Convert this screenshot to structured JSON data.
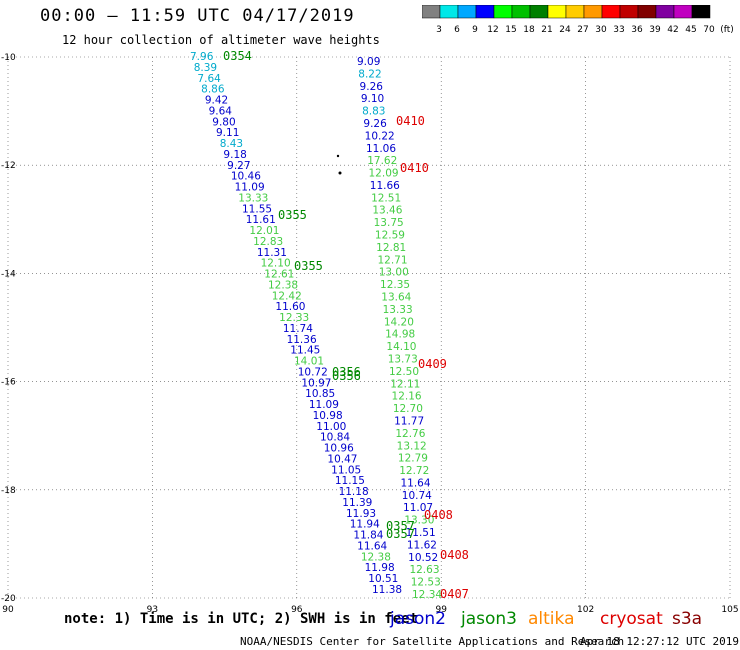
{
  "header": {
    "title": "00:00 — 11:59 UTC 04/17/2019",
    "subtitle": "12 hour collection of altimeter wave heights"
  },
  "colorbar": {
    "labels": [
      "3",
      "6",
      "9",
      "12",
      "15",
      "18",
      "21",
      "24",
      "27",
      "30",
      "33",
      "36",
      "39",
      "42",
      "45",
      "70",
      "(ft)"
    ],
    "colors": [
      "#808080",
      "#00e8e8",
      "#00a8ff",
      "#0000ff",
      "#00ff00",
      "#00c000",
      "#008000",
      "#ffff00",
      "#ffcc00",
      "#ff9900",
      "#ff0000",
      "#c00000",
      "#800000",
      "#8000a0",
      "#c000c0",
      "#000000"
    ]
  },
  "footer": {
    "note": "note: 1) Time is in UTC; 2) SWH is in feet",
    "satellites": [
      {
        "name": "jason2",
        "color": "#0000cc"
      },
      {
        "name": "jason3",
        "color": "#008800"
      },
      {
        "name": "altika",
        "color": "#ff8800"
      },
      {
        "name": "cryosat",
        "color": "#dd0000"
      },
      {
        "name": "s3a",
        "color": "#880000"
      }
    ],
    "credit": "NOAA/NESDIS Center for Satellite Applications and Research",
    "timestamp": "Apr 18 12:27:12 UTC 2019"
  },
  "chart_data": {
    "type": "scatter",
    "x_ticks": [
      "90",
      "93",
      "96",
      "99",
      "102",
      "105"
    ],
    "y_ticks": [
      "-10",
      "-12",
      "-14",
      "-16",
      "-18",
      "-20"
    ],
    "xlim": [
      90,
      105
    ],
    "ylim": [
      -20,
      -10
    ],
    "grid": true,
    "track_west": [
      {
        "v": "7.96",
        "c": "#00aacc"
      },
      {
        "v": "8.39",
        "c": "#00aacc"
      },
      {
        "v": "7.64",
        "c": "#00aacc"
      },
      {
        "v": "8.86",
        "c": "#00aacc"
      },
      {
        "v": "9.42",
        "c": "#0000cc"
      },
      {
        "v": "9.64",
        "c": "#0000cc"
      },
      {
        "v": "9.80",
        "c": "#0000cc"
      },
      {
        "v": "9.11",
        "c": "#0000cc"
      },
      {
        "v": "8.43",
        "c": "#00aacc"
      },
      {
        "v": "9.18",
        "c": "#0000cc"
      },
      {
        "v": "9.27",
        "c": "#0000cc"
      },
      {
        "v": "10.46",
        "c": "#0000cc"
      },
      {
        "v": "11.09",
        "c": "#0000cc"
      },
      {
        "v": "13.33",
        "c": "#44cc44"
      },
      {
        "v": "11.55",
        "c": "#0000cc"
      },
      {
        "v": "11.61",
        "c": "#0000cc"
      },
      {
        "v": "12.01",
        "c": "#44cc44"
      },
      {
        "v": "12.83",
        "c": "#44cc44"
      },
      {
        "v": "11.31",
        "c": "#0000cc"
      },
      {
        "v": "12.10",
        "c": "#44cc44"
      },
      {
        "v": "12.61",
        "c": "#44cc44"
      },
      {
        "v": "12.38",
        "c": "#44cc44"
      },
      {
        "v": "12.42",
        "c": "#44cc44"
      },
      {
        "v": "11.60",
        "c": "#0000cc"
      },
      {
        "v": "12.33",
        "c": "#44cc44"
      },
      {
        "v": "11.74",
        "c": "#0000cc"
      },
      {
        "v": "11.36",
        "c": "#0000cc"
      },
      {
        "v": "11.45",
        "c": "#0000cc"
      },
      {
        "v": "14.01",
        "c": "#44cc44"
      },
      {
        "v": "10.72",
        "c": "#0000cc"
      },
      {
        "v": "10.97",
        "c": "#0000cc"
      },
      {
        "v": "10.85",
        "c": "#0000cc"
      },
      {
        "v": "11.09",
        "c": "#0000cc"
      },
      {
        "v": "10.98",
        "c": "#0000cc"
      },
      {
        "v": "11.00",
        "c": "#0000cc"
      },
      {
        "v": "10.84",
        "c": "#0000cc"
      },
      {
        "v": "10.96",
        "c": "#0000cc"
      },
      {
        "v": "10.47",
        "c": "#0000cc"
      },
      {
        "v": "11.05",
        "c": "#0000cc"
      },
      {
        "v": "11.15",
        "c": "#0000cc"
      },
      {
        "v": "11.18",
        "c": "#0000cc"
      },
      {
        "v": "11.39",
        "c": "#0000cc"
      },
      {
        "v": "11.93",
        "c": "#0000cc"
      },
      {
        "v": "11.94",
        "c": "#0000cc"
      },
      {
        "v": "11.84",
        "c": "#0000cc"
      },
      {
        "v": "11.64",
        "c": "#0000cc"
      },
      {
        "v": "12.38",
        "c": "#44cc44"
      },
      {
        "v": "11.98",
        "c": "#0000cc"
      },
      {
        "v": "10.51",
        "c": "#0000cc"
      },
      {
        "v": "11.38",
        "c": "#0000cc"
      }
    ],
    "track_east": [
      {
        "v": "9.09",
        "c": "#0000cc"
      },
      {
        "v": "8.22",
        "c": "#00aacc"
      },
      {
        "v": "9.26",
        "c": "#0000cc"
      },
      {
        "v": "9.10",
        "c": "#0000cc"
      },
      {
        "v": "8.83",
        "c": "#00aacc"
      },
      {
        "v": "9.26",
        "c": "#0000cc"
      },
      {
        "v": "10.22",
        "c": "#0000cc"
      },
      {
        "v": "11.06",
        "c": "#0000cc"
      },
      {
        "v": "17.62",
        "c": "#44cc44"
      },
      {
        "v": "12.09",
        "c": "#44cc44"
      },
      {
        "v": "11.66",
        "c": "#0000cc"
      },
      {
        "v": "12.51",
        "c": "#44cc44"
      },
      {
        "v": "13.46",
        "c": "#44cc44"
      },
      {
        "v": "13.75",
        "c": "#44cc44"
      },
      {
        "v": "12.59",
        "c": "#44cc44"
      },
      {
        "v": "12.81",
        "c": "#44cc44"
      },
      {
        "v": "12.71",
        "c": "#44cc44"
      },
      {
        "v": "13.00",
        "c": "#44cc44"
      },
      {
        "v": "12.35",
        "c": "#44cc44"
      },
      {
        "v": "13.64",
        "c": "#44cc44"
      },
      {
        "v": "13.33",
        "c": "#44cc44"
      },
      {
        "v": "14.20",
        "c": "#44cc44"
      },
      {
        "v": "14.98",
        "c": "#44cc44"
      },
      {
        "v": "14.10",
        "c": "#44cc44"
      },
      {
        "v": "13.73",
        "c": "#44cc44"
      },
      {
        "v": "12.50",
        "c": "#44cc44"
      },
      {
        "v": "12.11",
        "c": "#44cc44"
      },
      {
        "v": "12.16",
        "c": "#44cc44"
      },
      {
        "v": "12.70",
        "c": "#44cc44"
      },
      {
        "v": "11.77",
        "c": "#0000cc"
      },
      {
        "v": "12.76",
        "c": "#44cc44"
      },
      {
        "v": "13.12",
        "c": "#44cc44"
      },
      {
        "v": "12.79",
        "c": "#44cc44"
      },
      {
        "v": "12.72",
        "c": "#44cc44"
      },
      {
        "v": "11.64",
        "c": "#0000cc"
      },
      {
        "v": "10.74",
        "c": "#0000cc"
      },
      {
        "v": "11.07",
        "c": "#0000cc"
      },
      {
        "v": "13.30",
        "c": "#44cc44"
      },
      {
        "v": "11.51",
        "c": "#0000cc"
      },
      {
        "v": "11.62",
        "c": "#0000cc"
      },
      {
        "v": "10.52",
        "c": "#0000cc"
      },
      {
        "v": "12.63",
        "c": "#44cc44"
      },
      {
        "v": "12.53",
        "c": "#44cc44"
      },
      {
        "v": "12.34",
        "c": "#44cc44"
      }
    ],
    "pass_times": [
      {
        "t": "0354",
        "c": "#008800"
      },
      {
        "t": "0410",
        "c": "#dd0000"
      },
      {
        "t": "0410",
        "c": "#dd0000"
      },
      {
        "t": "0355",
        "c": "#008800"
      },
      {
        "t": "0355",
        "c": "#008800"
      },
      {
        "t": "0409",
        "c": "#dd0000"
      },
      {
        "t": "0356",
        "c": "#008800"
      },
      {
        "t": "0356",
        "c": "#008800"
      },
      {
        "t": "0408",
        "c": "#dd0000"
      },
      {
        "t": "0357",
        "c": "#008800"
      },
      {
        "t": "0357",
        "c": "#008800"
      },
      {
        "t": "0408",
        "c": "#dd0000"
      },
      {
        "t": "0407",
        "c": "#dd0000"
      }
    ]
  }
}
